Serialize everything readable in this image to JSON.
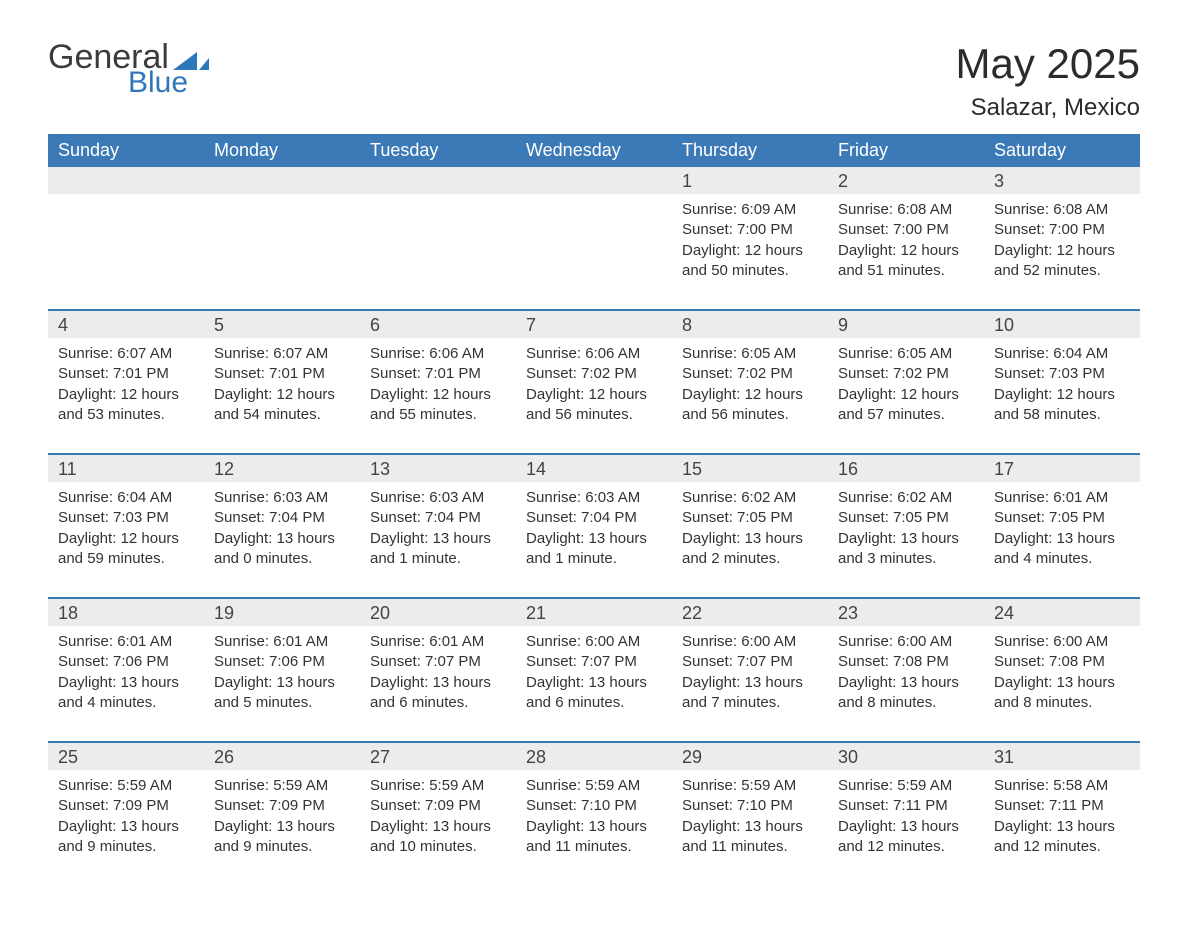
{
  "brand": {
    "general": "General",
    "blue": "Blue",
    "flag_color": "#2f77bb"
  },
  "header": {
    "month_title": "May 2025",
    "location": "Salazar, Mexico"
  },
  "colors": {
    "header_bg": "#3b79b7",
    "header_text": "#ffffff",
    "band_bg": "#ececec",
    "rule": "#3b79b7",
    "body_text": "#333333",
    "page_bg": "#ffffff"
  },
  "days_of_week": [
    "Sunday",
    "Monday",
    "Tuesday",
    "Wednesday",
    "Thursday",
    "Friday",
    "Saturday"
  ],
  "weeks": [
    [
      null,
      null,
      null,
      null,
      {
        "n": "1",
        "sunrise": "Sunrise: 6:09 AM",
        "sunset": "Sunset: 7:00 PM",
        "daylight": "Daylight: 12 hours and 50 minutes."
      },
      {
        "n": "2",
        "sunrise": "Sunrise: 6:08 AM",
        "sunset": "Sunset: 7:00 PM",
        "daylight": "Daylight: 12 hours and 51 minutes."
      },
      {
        "n": "3",
        "sunrise": "Sunrise: 6:08 AM",
        "sunset": "Sunset: 7:00 PM",
        "daylight": "Daylight: 12 hours and 52 minutes."
      }
    ],
    [
      {
        "n": "4",
        "sunrise": "Sunrise: 6:07 AM",
        "sunset": "Sunset: 7:01 PM",
        "daylight": "Daylight: 12 hours and 53 minutes."
      },
      {
        "n": "5",
        "sunrise": "Sunrise: 6:07 AM",
        "sunset": "Sunset: 7:01 PM",
        "daylight": "Daylight: 12 hours and 54 minutes."
      },
      {
        "n": "6",
        "sunrise": "Sunrise: 6:06 AM",
        "sunset": "Sunset: 7:01 PM",
        "daylight": "Daylight: 12 hours and 55 minutes."
      },
      {
        "n": "7",
        "sunrise": "Sunrise: 6:06 AM",
        "sunset": "Sunset: 7:02 PM",
        "daylight": "Daylight: 12 hours and 56 minutes."
      },
      {
        "n": "8",
        "sunrise": "Sunrise: 6:05 AM",
        "sunset": "Sunset: 7:02 PM",
        "daylight": "Daylight: 12 hours and 56 minutes."
      },
      {
        "n": "9",
        "sunrise": "Sunrise: 6:05 AM",
        "sunset": "Sunset: 7:02 PM",
        "daylight": "Daylight: 12 hours and 57 minutes."
      },
      {
        "n": "10",
        "sunrise": "Sunrise: 6:04 AM",
        "sunset": "Sunset: 7:03 PM",
        "daylight": "Daylight: 12 hours and 58 minutes."
      }
    ],
    [
      {
        "n": "11",
        "sunrise": "Sunrise: 6:04 AM",
        "sunset": "Sunset: 7:03 PM",
        "daylight": "Daylight: 12 hours and 59 minutes."
      },
      {
        "n": "12",
        "sunrise": "Sunrise: 6:03 AM",
        "sunset": "Sunset: 7:04 PM",
        "daylight": "Daylight: 13 hours and 0 minutes."
      },
      {
        "n": "13",
        "sunrise": "Sunrise: 6:03 AM",
        "sunset": "Sunset: 7:04 PM",
        "daylight": "Daylight: 13 hours and 1 minute."
      },
      {
        "n": "14",
        "sunrise": "Sunrise: 6:03 AM",
        "sunset": "Sunset: 7:04 PM",
        "daylight": "Daylight: 13 hours and 1 minute."
      },
      {
        "n": "15",
        "sunrise": "Sunrise: 6:02 AM",
        "sunset": "Sunset: 7:05 PM",
        "daylight": "Daylight: 13 hours and 2 minutes."
      },
      {
        "n": "16",
        "sunrise": "Sunrise: 6:02 AM",
        "sunset": "Sunset: 7:05 PM",
        "daylight": "Daylight: 13 hours and 3 minutes."
      },
      {
        "n": "17",
        "sunrise": "Sunrise: 6:01 AM",
        "sunset": "Sunset: 7:05 PM",
        "daylight": "Daylight: 13 hours and 4 minutes."
      }
    ],
    [
      {
        "n": "18",
        "sunrise": "Sunrise: 6:01 AM",
        "sunset": "Sunset: 7:06 PM",
        "daylight": "Daylight: 13 hours and 4 minutes."
      },
      {
        "n": "19",
        "sunrise": "Sunrise: 6:01 AM",
        "sunset": "Sunset: 7:06 PM",
        "daylight": "Daylight: 13 hours and 5 minutes."
      },
      {
        "n": "20",
        "sunrise": "Sunrise: 6:01 AM",
        "sunset": "Sunset: 7:07 PM",
        "daylight": "Daylight: 13 hours and 6 minutes."
      },
      {
        "n": "21",
        "sunrise": "Sunrise: 6:00 AM",
        "sunset": "Sunset: 7:07 PM",
        "daylight": "Daylight: 13 hours and 6 minutes."
      },
      {
        "n": "22",
        "sunrise": "Sunrise: 6:00 AM",
        "sunset": "Sunset: 7:07 PM",
        "daylight": "Daylight: 13 hours and 7 minutes."
      },
      {
        "n": "23",
        "sunrise": "Sunrise: 6:00 AM",
        "sunset": "Sunset: 7:08 PM",
        "daylight": "Daylight: 13 hours and 8 minutes."
      },
      {
        "n": "24",
        "sunrise": "Sunrise: 6:00 AM",
        "sunset": "Sunset: 7:08 PM",
        "daylight": "Daylight: 13 hours and 8 minutes."
      }
    ],
    [
      {
        "n": "25",
        "sunrise": "Sunrise: 5:59 AM",
        "sunset": "Sunset: 7:09 PM",
        "daylight": "Daylight: 13 hours and 9 minutes."
      },
      {
        "n": "26",
        "sunrise": "Sunrise: 5:59 AM",
        "sunset": "Sunset: 7:09 PM",
        "daylight": "Daylight: 13 hours and 9 minutes."
      },
      {
        "n": "27",
        "sunrise": "Sunrise: 5:59 AM",
        "sunset": "Sunset: 7:09 PM",
        "daylight": "Daylight: 13 hours and 10 minutes."
      },
      {
        "n": "28",
        "sunrise": "Sunrise: 5:59 AM",
        "sunset": "Sunset: 7:10 PM",
        "daylight": "Daylight: 13 hours and 11 minutes."
      },
      {
        "n": "29",
        "sunrise": "Sunrise: 5:59 AM",
        "sunset": "Sunset: 7:10 PM",
        "daylight": "Daylight: 13 hours and 11 minutes."
      },
      {
        "n": "30",
        "sunrise": "Sunrise: 5:59 AM",
        "sunset": "Sunset: 7:11 PM",
        "daylight": "Daylight: 13 hours and 12 minutes."
      },
      {
        "n": "31",
        "sunrise": "Sunrise: 5:58 AM",
        "sunset": "Sunset: 7:11 PM",
        "daylight": "Daylight: 13 hours and 12 minutes."
      }
    ]
  ]
}
